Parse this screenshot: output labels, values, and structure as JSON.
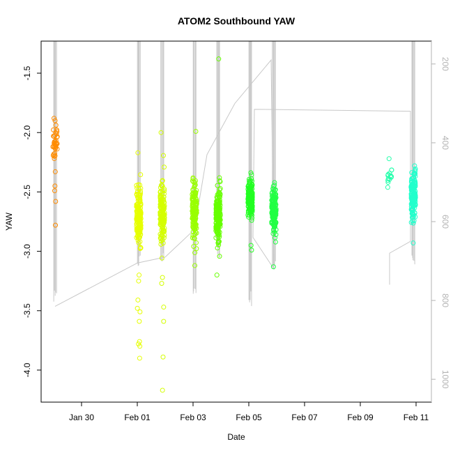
{
  "chart_data": {
    "type": "scatter",
    "title": "ATOM2 Southbound YAW",
    "xlabel": "Date",
    "ylabel": "YAW",
    "x_ticks": [
      "Jan 30",
      "Feb 01",
      "Feb 03",
      "Feb 05",
      "Feb 07",
      "Feb 09",
      "Feb 11"
    ],
    "y_ticks": [
      "-1.5",
      "-2.0",
      "-2.5",
      "-3.0",
      "-3.5",
      "-4.0"
    ],
    "y2_ticks": [
      "200",
      "400",
      "600",
      "800",
      "1000"
    ],
    "xlim_days_from_jan30": [
      -1.45,
      12.55
    ],
    "ylim": [
      -4.27,
      -1.23
    ],
    "y2lim": [
      1058,
      142
    ],
    "series": [
      {
        "color": "#FF8C00",
        "day": -0.95,
        "center": -2.08,
        "spread": 0.07,
        "n": 38,
        "outliers": [
          -1.88,
          -1.9,
          -2.45,
          -2.49,
          -2.58,
          -2.78,
          -2.33
        ]
      },
      {
        "color": "#E6FF00",
        "day": 2.05,
        "center": -2.7,
        "spread": 0.12,
        "n": 160,
        "outliers": [
          -2.17,
          -3.2,
          -3.25,
          -3.41,
          -3.48,
          -3.51,
          -3.59,
          -3.76,
          -3.78,
          -3.8,
          -3.9
        ]
      },
      {
        "color": "#D4FF00",
        "day": 2.9,
        "center": -2.65,
        "spread": 0.12,
        "n": 150,
        "outliers": [
          -2.0,
          -3.22,
          -3.27,
          -3.47,
          -3.59,
          -3.89,
          -4.17
        ]
      },
      {
        "color": "#99FF00",
        "day": 4.05,
        "center": -2.67,
        "spread": 0.12,
        "n": 150,
        "outliers": [
          -1.99,
          -3.12
        ]
      },
      {
        "color": "#66FF00",
        "day": 4.9,
        "center": -2.7,
        "spread": 0.12,
        "n": 170,
        "outliers": [
          -1.38,
          -3.2
        ]
      },
      {
        "color": "#22FF22",
        "day": 6.05,
        "center": -2.56,
        "spread": 0.08,
        "n": 180,
        "outliers": [
          -2.95,
          -2.99
        ]
      },
      {
        "color": "#22FF44",
        "day": 6.9,
        "center": -2.66,
        "spread": 0.1,
        "n": 150,
        "outliers": [
          -3.13
        ]
      },
      {
        "color": "#22FFAA",
        "day": 11.05,
        "center": -2.37,
        "spread": 0.05,
        "n": 14,
        "outliers": [
          -2.22
        ]
      },
      {
        "color": "#22FFCC",
        "day": 11.9,
        "center": -2.52,
        "spread": 0.1,
        "n": 150,
        "outliers": [
          -2.93,
          -2.28
        ]
      }
    ],
    "gray_line": {
      "color": "#c8c8c8",
      "right_axis": "y2",
      "spikes": [
        {
          "day": -0.95,
          "top": 142,
          "bottom": 815
        },
        {
          "day": 2.05,
          "top": 142,
          "bottom": 720
        },
        {
          "day": 2.9,
          "top": 142,
          "bottom": 715
        },
        {
          "day": 4.05,
          "top": 142,
          "bottom": 790
        },
        {
          "day": 4.9,
          "top": 142,
          "bottom": 695
        },
        {
          "day": 6.05,
          "top": 142,
          "bottom": 815
        },
        {
          "day": 6.9,
          "top": 142,
          "bottom": 720
        },
        {
          "day": 11.9,
          "top": 142,
          "bottom": 720
        }
      ],
      "trend": [
        [
          -0.95,
          815
        ],
        [
          2.0,
          705
        ],
        [
          3.0,
          690
        ],
        [
          4.05,
          620
        ],
        [
          4.5,
          430
        ],
        [
          5.5,
          300
        ],
        [
          6.8,
          190
        ],
        [
          6.9,
          720
        ],
        [
          6.15,
          640
        ],
        [
          6.2,
          315
        ],
        [
          11.8,
          320
        ],
        [
          11.8,
          650
        ],
        [
          11.05,
          680
        ],
        [
          11.05,
          760
        ]
      ]
    }
  }
}
